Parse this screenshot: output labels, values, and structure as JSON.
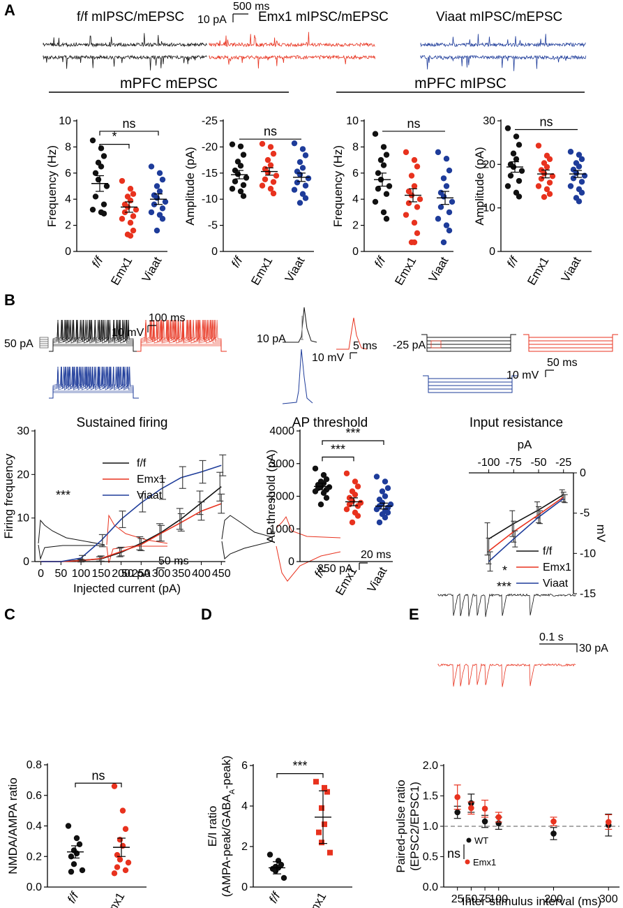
{
  "colors": {
    "ff": "#111111",
    "emx1": "#e8321e",
    "viaat": "#1e3c9a"
  },
  "panels": {
    "a": "A",
    "b": "B",
    "c": "C",
    "d": "D",
    "e": "E"
  },
  "panelA": {
    "trace_labels": [
      "f/f mIPSC/mEPSC",
      "Emx1 mIPSC/mEPSC",
      "Viaat mIPSC/mEPSC"
    ],
    "scale_x": "500 ms",
    "scale_y": "10 pA",
    "group_mepsc": "mPFC mEPSC",
    "group_mipsc": "mPFC mIPSC"
  },
  "panelB": {
    "stim_label_left": "50 pA",
    "scale_left_x": "100 ms",
    "scale_left_y": "10 mV",
    "stim_label_mid": "10 pA",
    "scale_mid_x": "5 ms",
    "scale_mid_y": "10 mV",
    "stim_label_right": "-25 pA",
    "scale_right_x": "50 ms",
    "scale_right_y": "10 mV"
  },
  "panelC": {
    "scale_x": "50 ms",
    "scale_y": "50 pA"
  },
  "panelD": {
    "scale_x": "20 ms",
    "scale_y": "250 pA"
  },
  "panelE": {
    "scale_x": "0.1 s",
    "scale_y": "30 pA"
  },
  "chart_data": [
    {
      "id": "a1",
      "type": "scatter",
      "title": "",
      "ylabel": "Frequency (Hz)",
      "ylim": [
        0,
        10
      ],
      "yticks": [
        0,
        2,
        4,
        6,
        8,
        10
      ],
      "categories": [
        "f/f",
        "Emx1",
        "Viaat"
      ],
      "series": [
        {
          "name": "f/f",
          "mean": 5.2,
          "sem": 0.6,
          "values": [
            8.5,
            7.9,
            7.3,
            6.8,
            6.5,
            6.0,
            5.5,
            5.0,
            4.2,
            3.6,
            3.2,
            3.0,
            2.9
          ]
        },
        {
          "name": "Emx1",
          "mean": 3.4,
          "sem": 0.4,
          "values": [
            5.4,
            4.8,
            4.4,
            4.2,
            3.9,
            3.6,
            3.4,
            3.2,
            3.0,
            2.7,
            2.5,
            2.2,
            1.6,
            1.3,
            1.2
          ]
        },
        {
          "name": "Viaat",
          "mean": 4.0,
          "sem": 0.4,
          "values": [
            6.5,
            6.0,
            5.5,
            5.0,
            4.6,
            4.3,
            4.1,
            3.8,
            3.6,
            3.3,
            3.0,
            2.8,
            2.5,
            1.6
          ]
        }
      ],
      "annotations": [
        {
          "text": "ns",
          "from": 0,
          "to": 2,
          "level": 9.2
        },
        {
          "text": "*",
          "from": 0,
          "to": 1,
          "level": 8.2
        }
      ]
    },
    {
      "id": "a2",
      "type": "scatter",
      "title": "",
      "ylabel": "Amplitude (pA)",
      "ylim": [
        0,
        -25
      ],
      "yticks": [
        0,
        -5,
        -10,
        -15,
        -20,
        -25
      ],
      "categories": [
        "f/f",
        "Emx1",
        "Viaat"
      ],
      "series": [
        {
          "name": "f/f",
          "mean": -14.7,
          "sem": 0.8,
          "values": [
            -20.5,
            -20.1,
            -18.5,
            -17.2,
            -16.4,
            -15.5,
            -14.8,
            -14.1,
            -13.4,
            -12.7,
            -12.0,
            -11.5,
            -10.6
          ]
        },
        {
          "name": "Emx1",
          "mean": -15.3,
          "sem": 0.7,
          "values": [
            -20.6,
            -20.0,
            -18.7,
            -17.5,
            -16.5,
            -15.8,
            -15.1,
            -14.5,
            -13.8,
            -13.3,
            -12.6,
            -12.0,
            -11.1
          ]
        },
        {
          "name": "Viaat",
          "mean": -14.2,
          "sem": 0.8,
          "values": [
            -20.7,
            -19.6,
            -18.4,
            -17.1,
            -16.0,
            -15.3,
            -14.7,
            -14.0,
            -13.2,
            -12.6,
            -11.8,
            -11.0,
            -10.2,
            -9.3
          ]
        }
      ],
      "annotations": [
        {
          "text": "ns",
          "from": 0,
          "to": 2,
          "level": -21.5
        }
      ]
    },
    {
      "id": "a3",
      "type": "scatter",
      "title": "",
      "ylabel": "Frequency (Hz)",
      "ylim": [
        0,
        10
      ],
      "yticks": [
        0,
        2,
        4,
        6,
        8,
        10
      ],
      "categories": [
        "f/f",
        "Emx1",
        "Viaat"
      ],
      "series": [
        {
          "name": "f/f",
          "mean": 5.5,
          "sem": 0.5,
          "values": [
            9.0,
            8.0,
            7.4,
            7.0,
            6.6,
            6.0,
            5.5,
            5.0,
            4.8,
            4.4,
            3.8,
            3.0,
            2.5
          ]
        },
        {
          "name": "Emx1",
          "mean": 4.3,
          "sem": 0.5,
          "values": [
            7.6,
            7.0,
            6.5,
            5.8,
            5.0,
            4.6,
            4.3,
            4.0,
            3.7,
            3.4,
            2.8,
            2.2,
            1.4,
            0.7,
            0.7
          ]
        },
        {
          "name": "Viaat",
          "mean": 4.1,
          "sem": 0.5,
          "values": [
            7.6,
            7.1,
            6.2,
            5.6,
            5.0,
            4.5,
            4.2,
            3.8,
            3.4,
            3.0,
            2.5,
            2.0,
            1.6,
            0.7
          ]
        }
      ],
      "annotations": [
        {
          "text": "ns",
          "from": 0,
          "to": 2,
          "level": 9.2
        }
      ]
    },
    {
      "id": "a4",
      "type": "scatter",
      "title": "",
      "ylabel": "Amplitude (pA)",
      "ylim": [
        0,
        30
      ],
      "yticks": [
        0,
        10,
        20,
        30
      ],
      "categories": [
        "f/f",
        "Emx1",
        "Viaat"
      ],
      "series": [
        {
          "name": "f/f",
          "mean": 19.4,
          "sem": 1.2,
          "values": [
            28.3,
            26.4,
            24.5,
            22.5,
            21.2,
            20.0,
            19.4,
            18.5,
            17.4,
            16.2,
            15.0,
            13.5,
            12.6
          ]
        },
        {
          "name": "Emx1",
          "mean": 17.8,
          "sem": 0.9,
          "values": [
            24.3,
            22.0,
            21.2,
            20.3,
            19.4,
            18.7,
            17.9,
            17.3,
            16.7,
            15.8,
            15.0,
            14.3,
            13.2,
            12.5
          ]
        },
        {
          "name": "Viaat",
          "mean": 17.8,
          "sem": 0.8,
          "values": [
            22.9,
            22.2,
            21.2,
            20.3,
            19.5,
            18.8,
            18.0,
            17.4,
            16.8,
            16.0,
            15.0,
            14.3,
            13.5,
            12.3,
            11.5
          ]
        }
      ],
      "annotations": [
        {
          "text": "ns",
          "from": 0,
          "to": 2,
          "level": 28.0
        }
      ]
    },
    {
      "id": "b1",
      "type": "line",
      "title": "Sustained firing",
      "xlabel": "Injected current (pA)",
      "ylabel": "Firing frequency",
      "xlim": [
        -15,
        460
      ],
      "ylim": [
        0,
        30
      ],
      "xticks": [
        0,
        50,
        100,
        150,
        200,
        250,
        300,
        350,
        400,
        450
      ],
      "yticks": [
        0,
        10,
        20,
        30
      ],
      "x": [
        50,
        100,
        150,
        200,
        250,
        300,
        350,
        400,
        450
      ],
      "series": [
        {
          "name": "f/f",
          "values": [
            0,
            0.3,
            0.6,
            2.1,
            4.2,
            6.7,
            9.8,
            13.5,
            17.2
          ],
          "err": [
            0,
            0.3,
            0.5,
            1.0,
            1.5,
            2.0,
            2.4,
            2.7,
            3.3
          ]
        },
        {
          "name": "Emx1",
          "values": [
            0,
            0.2,
            0.7,
            2.3,
            3.9,
            6.5,
            9.0,
            11.6,
            13.3
          ],
          "err": [
            0,
            0.3,
            0.6,
            1.0,
            1.4,
            1.8,
            2.0,
            2.1,
            2.2
          ]
        },
        {
          "name": "Viaat",
          "values": [
            0,
            0.8,
            4.8,
            9.7,
            13.5,
            16.7,
            19.3,
            20.6,
            22.1
          ],
          "err": [
            0,
            0.6,
            1.4,
            1.9,
            2.1,
            2.4,
            2.5,
            2.6,
            2.4
          ]
        }
      ],
      "legend": [
        "f/f",
        "Emx1",
        "Viaat"
      ],
      "significance": "***"
    },
    {
      "id": "b2",
      "type": "scatter",
      "title": "AP threshold",
      "ylabel": "AP threshold (pA)",
      "ylim": [
        0,
        4000
      ],
      "yticks": [
        0,
        1000,
        2000,
        3000,
        4000
      ],
      "categories": [
        "f/f",
        "Emx1",
        "Viaat"
      ],
      "series": [
        {
          "name": "f/f",
          "mean": 2300,
          "sem": 100,
          "values": [
            2850,
            2650,
            2520,
            2450,
            2400,
            2350,
            2300,
            2280,
            2250,
            2200,
            2150,
            2100,
            1950,
            1750
          ]
        },
        {
          "name": "Emx1",
          "mean": 1830,
          "sem": 120,
          "values": [
            2700,
            2450,
            2300,
            2150,
            2050,
            1950,
            1850,
            1800,
            1750,
            1700,
            1600,
            1500,
            1400,
            1200
          ]
        },
        {
          "name": "Viaat",
          "mean": 1700,
          "sem": 90,
          "values": [
            2600,
            2450,
            2250,
            2150,
            2000,
            1900,
            1800,
            1750,
            1700,
            1650,
            1600,
            1550,
            1500,
            1450,
            1350,
            1200
          ]
        }
      ],
      "annotations": [
        {
          "text": "***",
          "from": 0,
          "to": 2,
          "level": 3700
        },
        {
          "text": "***",
          "from": 0,
          "to": 1,
          "level": 3200
        }
      ]
    },
    {
      "id": "b3",
      "type": "line",
      "title": "Input resistance",
      "xlabel": "pA",
      "ylabel": "mV",
      "xlim": [
        -120,
        -15
      ],
      "ylim": [
        -15,
        0
      ],
      "xticks": [
        -100,
        -75,
        -50,
        -25
      ],
      "xtick_labels": [
        "-100",
        "-75",
        "-50",
        "-25"
      ],
      "yticks": [
        0,
        -5,
        -10,
        -15
      ],
      "x": [
        -100,
        -75,
        -50,
        -25
      ],
      "series": [
        {
          "name": "f/f",
          "values": [
            -8.2,
            -6.3,
            -4.6,
            -2.7
          ],
          "err": [
            2.0,
            1.6,
            1.0,
            0.6
          ]
        },
        {
          "name": "Emx1",
          "values": [
            -9.7,
            -7.3,
            -5.2,
            -3.0
          ],
          "err": [
            1.6,
            1.3,
            1.0,
            0.6
          ]
        },
        {
          "name": "Viaat",
          "values": [
            -11.0,
            -8.2,
            -5.5,
            -3.2
          ],
          "err": [
            1.2,
            1.0,
            0.8,
            0.5
          ]
        }
      ],
      "legend": [
        "f/f",
        "Emx1",
        "Viaat"
      ],
      "significance": [
        "*",
        "***"
      ]
    },
    {
      "id": "c",
      "type": "scatter",
      "title": "",
      "ylabel": "NMDA/AMPA ratio",
      "ylim": [
        0,
        0.8
      ],
      "yticks": [
        0.0,
        0.2,
        0.4,
        0.6,
        0.8
      ],
      "ytick_labels": [
        "0.0",
        "0.2",
        "0.4",
        "0.6",
        "0.8"
      ],
      "categories": [
        "f/f",
        "Emx1"
      ],
      "series": [
        {
          "name": "f/f",
          "mean": 0.23,
          "sem": 0.04,
          "values": [
            0.4,
            0.32,
            0.28,
            0.24,
            0.22,
            0.2,
            0.15,
            0.11,
            0.1
          ]
        },
        {
          "name": "Emx1",
          "mean": 0.26,
          "sem": 0.06,
          "values": [
            0.66,
            0.5,
            0.38,
            0.31,
            0.27,
            0.21,
            0.18,
            0.16,
            0.13,
            0.11,
            0.09
          ]
        }
      ],
      "annotations": [
        {
          "text": "ns",
          "from": 0,
          "to": 1,
          "level": 0.68
        }
      ]
    },
    {
      "id": "d",
      "type": "scatter",
      "title": "",
      "ylabel": "E/I ratio",
      "ylabel2": "(AMPA-peak/GABA",
      "ylabel2_sub": "A",
      "ylabel2_end": "-peak)",
      "ylim": [
        0,
        6
      ],
      "yticks": [
        0,
        2,
        4,
        6
      ],
      "categories": [
        "f/f",
        "Emx1"
      ],
      "series": [
        {
          "name": "f/f",
          "mean": 0.95,
          "sem": 0.3,
          "values": [
            1.6,
            1.3,
            1.1,
            1.0,
            0.95,
            0.9,
            0.8,
            0.45
          ]
        },
        {
          "name": "Emx1",
          "mean": 3.45,
          "sem": 1.3,
          "values": [
            5.2,
            4.9,
            4.7,
            3.9,
            3.1,
            2.7,
            2.2,
            1.7
          ]
        }
      ],
      "annotations": [
        {
          "text": "***",
          "from": 0,
          "to": 1,
          "level": 5.6
        }
      ]
    },
    {
      "id": "e",
      "type": "scatter",
      "title": "",
      "xlabel": "Inter-stimulus interval (ms)",
      "ylabel": "Paired-pulse ratio",
      "ylabel2": "(EPSC2/EPSC1)",
      "xlim": [
        0,
        320
      ],
      "ylim": [
        0,
        2.0
      ],
      "xticks": [
        25,
        50,
        75,
        100,
        200,
        300
      ],
      "yticks": [
        0.0,
        0.5,
        1.0,
        1.5,
        2.0
      ],
      "ytick_labels": [
        "0.0",
        "0.5",
        "1.0",
        "1.5",
        "2.0"
      ],
      "x": [
        25,
        50,
        75,
        100,
        200,
        300
      ],
      "series": [
        {
          "name": "WT",
          "values": [
            1.23,
            1.38,
            1.08,
            1.05,
            0.88,
            1.02
          ],
          "err": [
            0.1,
            0.15,
            0.1,
            0.1,
            0.1,
            0.18
          ]
        },
        {
          "name": "Emx1",
          "values": [
            1.48,
            1.3,
            1.29,
            1.15,
            1.08,
            1.07
          ],
          "err": [
            0.2,
            0.1,
            0.14,
            0.08,
            0.07,
            0.12
          ]
        }
      ],
      "reference_line": 1.0,
      "legend": [
        "WT",
        "Emx1"
      ],
      "significance": "ns"
    }
  ]
}
